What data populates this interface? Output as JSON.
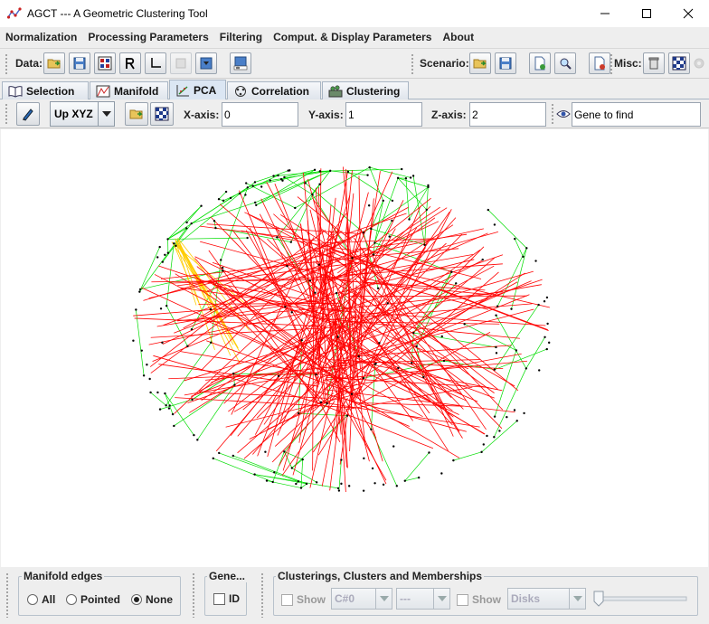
{
  "window": {
    "title": "AGCT --- A Geometric Clustering Tool"
  },
  "menu": [
    "Normalization",
    "Processing Parameters",
    "Filtering",
    "Comput. & Display Parameters",
    "About"
  ],
  "toolbar": {
    "data_label": "Data:",
    "scenario_label": "Scenario:",
    "misc_label": "Misc:"
  },
  "tabs": [
    {
      "label": "Selection",
      "icon": "book-icon"
    },
    {
      "label": "Manifold",
      "icon": "manifold-icon"
    },
    {
      "label": "PCA",
      "icon": "pca-icon"
    },
    {
      "label": "Correlation",
      "icon": "correlation-icon"
    },
    {
      "label": "Clustering",
      "icon": "clustering-icon"
    }
  ],
  "active_tab": "PCA",
  "pca": {
    "view_mode": "Up XYZ",
    "x_axis_label": "X-axis:",
    "x_axis_value": "0",
    "y_axis_label": "Y-axis:",
    "y_axis_value": "1",
    "z_axis_label": "Z-axis:",
    "z_axis_value": "2",
    "gene_placeholder": "Gene to find"
  },
  "plot": {
    "edge_color": "#00dd00",
    "highlight_color": "#ff0000",
    "secondary_color": "#ffcc00",
    "point_color": "#000000"
  },
  "bottom": {
    "manifold_title": "Manifold edges",
    "manifold_options": [
      "All",
      "Pointed",
      "None"
    ],
    "manifold_selected": "None",
    "gene_title": "Gene...",
    "gene_id_label": "ID",
    "clusterings_title": "Clusterings, Clusters and Memberships",
    "show_label_1": "Show",
    "clustering_combo": "C#0",
    "cluster_combo": "---",
    "show_label_2": "Show",
    "shape_combo": "Disks"
  }
}
